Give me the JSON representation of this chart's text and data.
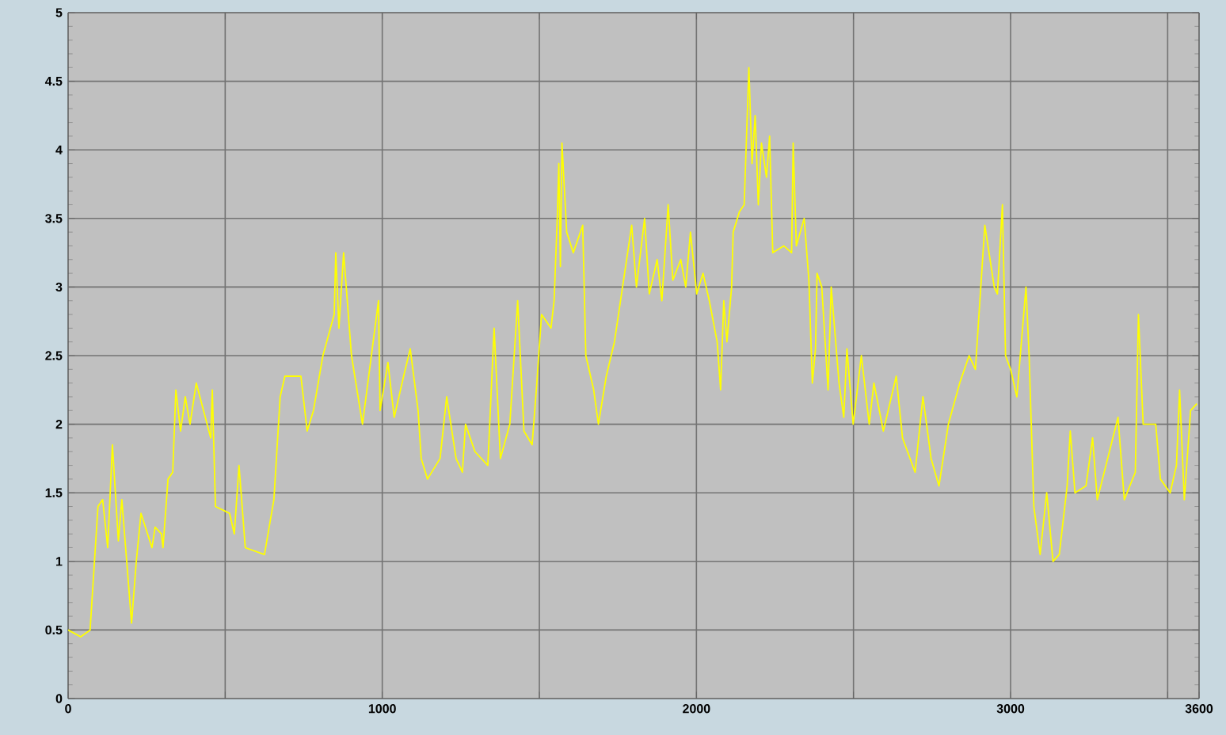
{
  "chart_data": {
    "type": "line",
    "color": "#ffff00",
    "grid": true,
    "xlim": [
      0,
      3600
    ],
    "ylim": [
      0,
      5
    ],
    "xticks": [
      0,
      {
        "value": 500,
        "label": null
      },
      1000,
      {
        "value": 1500,
        "label": null
      },
      2000,
      {
        "value": 2500,
        "label": null
      },
      3000,
      {
        "value": 3500,
        "label": null
      },
      3600
    ],
    "yticks": [
      0,
      0.5,
      1,
      1.5,
      2,
      2.5,
      3,
      3.5,
      4,
      4.5,
      5
    ],
    "x": [
      0,
      40,
      70,
      95,
      110,
      126,
      141,
      160,
      171,
      202,
      217,
      232,
      267,
      277,
      297,
      302,
      318,
      333,
      343,
      358,
      373,
      388,
      408,
      454,
      459,
      469,
      514,
      529,
      544,
      564,
      625,
      655,
      675,
      690,
      741,
      761,
      781,
      811,
      847,
      852,
      862,
      877,
      902,
      937,
      988,
      993,
      1018,
      1038,
      1068,
      1089,
      1114,
      1124,
      1144,
      1184,
      1205,
      1235,
      1255,
      1265,
      1295,
      1336,
      1356,
      1376,
      1406,
      1431,
      1451,
      1477,
      1492,
      1507,
      1537,
      1547,
      1557,
      1562,
      1567,
      1572,
      1587,
      1608,
      1638,
      1648,
      1673,
      1688,
      1713,
      1739,
      1794,
      1809,
      1835,
      1850,
      1875,
      1890,
      1910,
      1925,
      1950,
      1966,
      1981,
      2001,
      2021,
      2041,
      2066,
      2077,
      2087,
      2097,
      2112,
      2117,
      2137,
      2152,
      2167,
      2177,
      2187,
      2197,
      2207,
      2223,
      2233,
      2243,
      2278,
      2303,
      2308,
      2318,
      2343,
      2358,
      2369,
      2379,
      2384,
      2399,
      2419,
      2429,
      2454,
      2469,
      2479,
      2499,
      2525,
      2550,
      2565,
      2595,
      2636,
      2656,
      2696,
      2721,
      2747,
      2772,
      2802,
      2838,
      2868,
      2888,
      2918,
      2948,
      2958,
      2974,
      2984,
      3000,
      3020,
      3049,
      3059,
      3074,
      3094,
      3115,
      3135,
      3155,
      3170,
      3180,
      3190,
      3205,
      3240,
      3261,
      3276,
      3342,
      3362,
      3397,
      3407,
      3422,
      3462,
      3477,
      3508,
      3528,
      3538,
      3553,
      3573,
      3593
    ],
    "values": [
      0.5,
      0.45,
      0.5,
      1.4,
      1.45,
      1.1,
      1.85,
      1.15,
      1.45,
      0.55,
      1.0,
      1.35,
      1.1,
      1.25,
      1.2,
      1.1,
      1.6,
      1.65,
      2.25,
      1.95,
      2.2,
      2.0,
      2.3,
      1.9,
      2.25,
      1.4,
      1.35,
      1.2,
      1.7,
      1.1,
      1.05,
      1.45,
      2.2,
      2.35,
      2.35,
      1.95,
      2.1,
      2.5,
      2.8,
      3.25,
      2.7,
      3.25,
      2.5,
      2.0,
      2.9,
      2.1,
      2.45,
      2.05,
      2.35,
      2.55,
      2.1,
      1.75,
      1.6,
      1.75,
      2.2,
      1.75,
      1.65,
      2.0,
      1.8,
      1.7,
      2.7,
      1.75,
      2.0,
      2.9,
      1.95,
      1.85,
      2.3,
      2.8,
      2.7,
      2.9,
      3.5,
      3.9,
      3.15,
      4.05,
      3.4,
      3.25,
      3.45,
      2.5,
      2.25,
      2.0,
      2.35,
      2.6,
      3.45,
      3.0,
      3.5,
      2.95,
      3.2,
      2.9,
      3.6,
      3.05,
      3.2,
      3.0,
      3.4,
      2.95,
      3.1,
      2.9,
      2.6,
      2.25,
      2.9,
      2.6,
      3.0,
      3.4,
      3.55,
      3.6,
      4.6,
      3.9,
      4.25,
      3.6,
      4.05,
      3.8,
      4.1,
      3.25,
      3.3,
      3.25,
      4.05,
      3.3,
      3.5,
      3.05,
      2.3,
      2.55,
      3.1,
      3.0,
      2.25,
      3.0,
      2.3,
      2.05,
      2.55,
      2.0,
      2.5,
      2.0,
      2.3,
      1.95,
      2.35,
      1.9,
      1.65,
      2.2,
      1.75,
      1.55,
      2.0,
      2.3,
      2.5,
      2.4,
      3.45,
      3.0,
      2.95,
      3.6,
      2.5,
      2.4,
      2.2,
      3.0,
      2.5,
      1.4,
      1.05,
      1.5,
      1.0,
      1.05,
      1.35,
      1.55,
      1.95,
      1.5,
      1.55,
      1.9,
      1.45,
      2.05,
      1.45,
      1.65,
      2.8,
      2.0,
      2.0,
      1.6,
      1.5,
      1.7,
      2.25,
      1.45,
      2.1,
      2.15
    ]
  }
}
